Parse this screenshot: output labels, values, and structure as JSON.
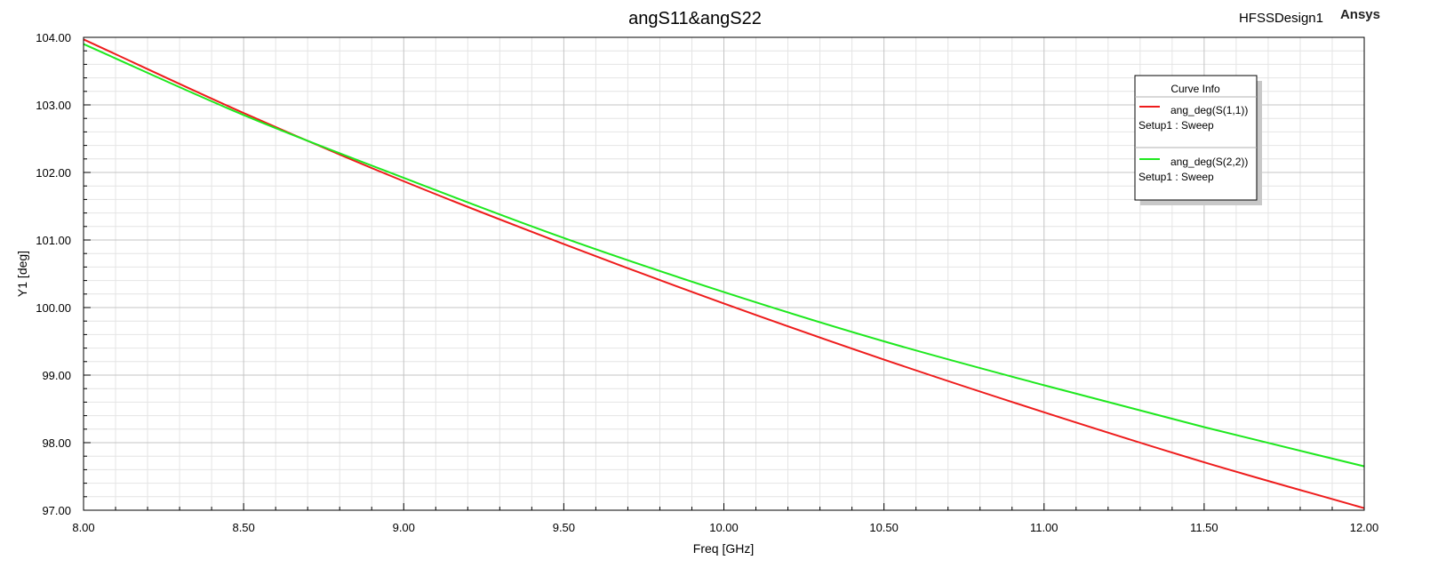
{
  "header": {
    "title": "angS11&angS22",
    "design_name": "HFSSDesign1",
    "brand": "Ansys"
  },
  "legend": {
    "title": "Curve Info",
    "entries": [
      {
        "name": "ang_deg(S(1,1))",
        "setup": "Setup1 : Sweep",
        "color": "#ee1c1c"
      },
      {
        "name": "ang_deg(S(2,2))",
        "setup": "Setup1 : Sweep",
        "color": "#1ee81e"
      }
    ]
  },
  "chart_data": {
    "type": "line",
    "title": "angS11&angS22",
    "xlabel": "Freq [GHz]",
    "ylabel": "Y1 [deg]",
    "xlim": [
      8.0,
      12.0
    ],
    "ylim": [
      97.0,
      104.0
    ],
    "x_ticks": [
      "8.00",
      "8.50",
      "9.00",
      "9.50",
      "10.00",
      "10.50",
      "11.00",
      "11.50",
      "12.00"
    ],
    "y_ticks": [
      "97.00",
      "98.00",
      "99.00",
      "100.00",
      "101.00",
      "102.00",
      "103.00",
      "104.00"
    ],
    "grid": true,
    "legend_position": "top-right",
    "series": [
      {
        "name": "ang_deg(S(1,1))",
        "color": "#ee1c1c",
        "x": [
          8.0,
          8.5,
          9.0,
          9.5,
          10.0,
          10.5,
          11.0,
          11.5,
          12.0
        ],
        "y": [
          103.97,
          102.88,
          101.87,
          100.94,
          100.06,
          99.23,
          98.45,
          97.71,
          97.03
        ]
      },
      {
        "name": "ang_deg(S(2,2))",
        "color": "#1ee81e",
        "x": [
          8.0,
          8.5,
          9.0,
          9.5,
          10.0,
          10.5,
          11.0,
          11.5,
          12.0
        ],
        "y": [
          103.9,
          102.85,
          101.92,
          101.03,
          100.23,
          99.5,
          98.85,
          98.23,
          97.65
        ]
      }
    ]
  }
}
